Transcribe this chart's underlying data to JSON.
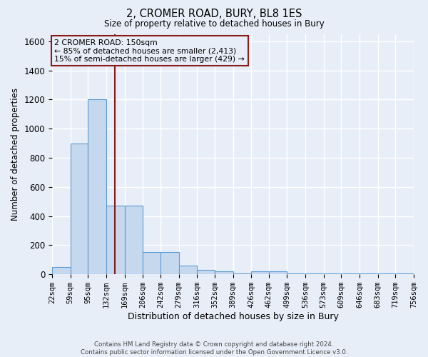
{
  "title": "2, CROMER ROAD, BURY, BL8 1ES",
  "subtitle": "Size of property relative to detached houses in Bury",
  "xlabel": "Distribution of detached houses by size in Bury",
  "ylabel": "Number of detached properties",
  "bar_color": "#c5d8ee",
  "bar_edge_color": "#5b9bd5",
  "background_color": "#e8eef8",
  "grid_color": "#ffffff",
  "vline_color": "#8b1a1a",
  "vline_x": 150,
  "annotation_text_line1": "2 CROMER ROAD: 150sqm",
  "annotation_text_line2": "← 85% of detached houses are smaller (2,413)",
  "annotation_text_line3": "15% of semi-detached houses are larger (429) →",
  "footer_text": "Contains HM Land Registry data © Crown copyright and database right 2024.\nContains public sector information licensed under the Open Government Licence v3.0.",
  "bin_edges": [
    22,
    59,
    95,
    132,
    169,
    206,
    242,
    279,
    316,
    352,
    389,
    426,
    462,
    499,
    536,
    573,
    609,
    646,
    683,
    719,
    756
  ],
  "bar_heights": [
    50,
    900,
    1200,
    470,
    470,
    155,
    155,
    60,
    30,
    20,
    5,
    20,
    20,
    5,
    5,
    5,
    5,
    5,
    5,
    5
  ],
  "ylim": [
    0,
    1650
  ],
  "yticks": [
    0,
    200,
    400,
    600,
    800,
    1000,
    1200,
    1400,
    1600
  ],
  "figsize": [
    6.0,
    5.0
  ],
  "dpi": 100
}
